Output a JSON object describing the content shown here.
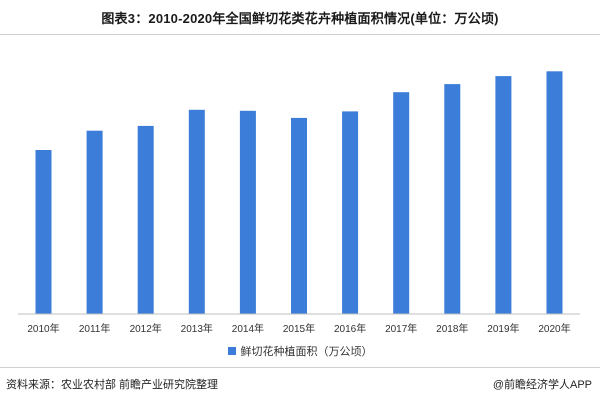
{
  "title": "图表3：2010-2020年全国鲜切花类花卉种植面积情况(单位：万公顷)",
  "source": "资料来源：农业农村部 前瞻产业研究院整理",
  "brand": "@前瞻经济学人APP",
  "colors": {
    "bar": "#3b7dd8",
    "axis": "#bfbfbf"
  },
  "chart_data": {
    "type": "bar",
    "categories": [
      "2010年",
      "2011年",
      "2012年",
      "2013年",
      "2014年",
      "2015年",
      "2016年",
      "2017年",
      "2018年",
      "2019年",
      "2020年"
    ],
    "series": [
      {
        "name": "鲜切花种植面积（万公顷）",
        "values": [
          5.1,
          5.7,
          5.85,
          6.35,
          6.32,
          6.1,
          6.3,
          6.9,
          7.15,
          7.4,
          7.55
        ]
      }
    ],
    "ylim": [
      0,
      7.9
    ],
    "grid": false,
    "legend_position": "bottom"
  }
}
